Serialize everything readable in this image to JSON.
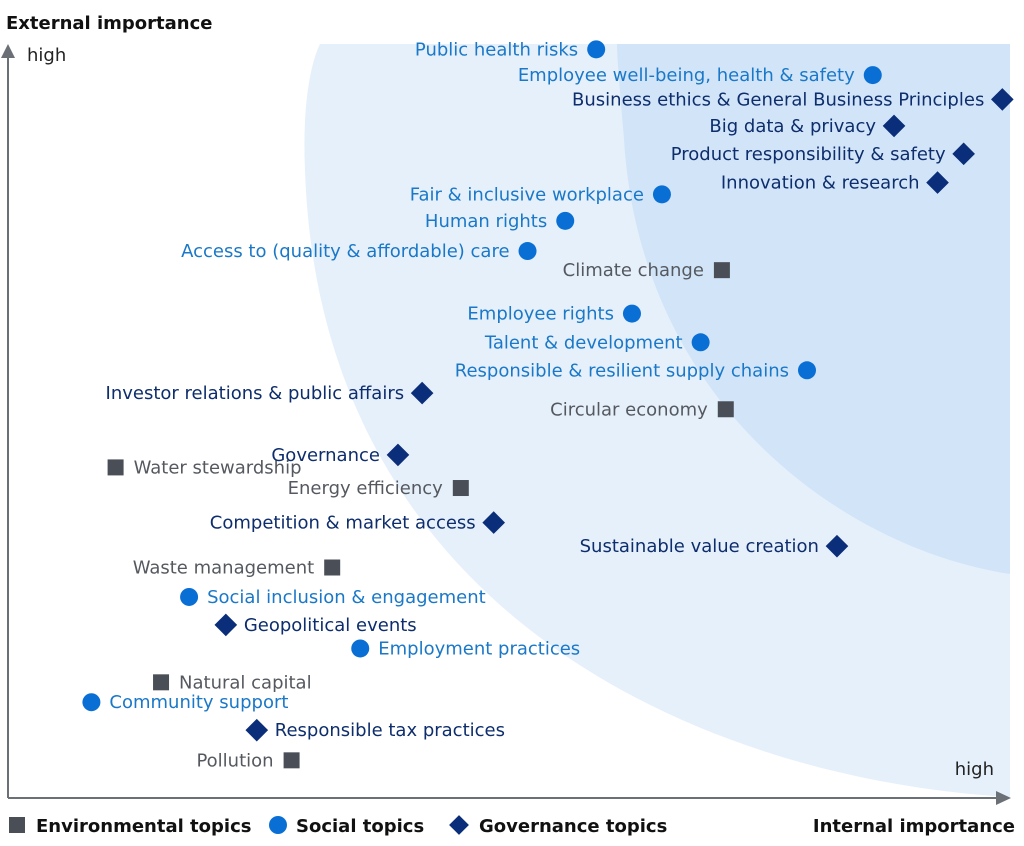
{
  "chart_data": {
    "type": "scatter",
    "title": "",
    "xlabel": "Internal importance",
    "ylabel": "External importance",
    "x_tick": "high",
    "y_tick": "high",
    "xlim": [
      0,
      100
    ],
    "ylim": [
      0,
      100
    ],
    "grid": false,
    "legend_placement": "bottom-left",
    "series": [
      {
        "name": "Environmental topics",
        "marker": "square",
        "color": "#4a4f57",
        "label_color": "#55595f",
        "points": [
          {
            "label": "Climate change",
            "x": 70.0,
            "y": 69.0,
            "side": "left"
          },
          {
            "label": "Circular economy",
            "x": 70.4,
            "y": 50.1,
            "side": "left"
          },
          {
            "label": "Water stewardship",
            "x": 7.3,
            "y": 42.2,
            "side": "right"
          },
          {
            "label": "Energy efficiency",
            "x": 43.0,
            "y": 39.4,
            "side": "left"
          },
          {
            "label": "Waste management",
            "x": 29.7,
            "y": 28.6,
            "side": "left"
          },
          {
            "label": "Natural capital",
            "x": 12.0,
            "y": 13.0,
            "side": "right"
          },
          {
            "label": "Pollution",
            "x": 25.5,
            "y": 2.4,
            "side": "left"
          }
        ]
      },
      {
        "name": "Social topics",
        "marker": "circle",
        "color": "#0a6fd4",
        "label_color": "#1a78c8",
        "points": [
          {
            "label": "Public health risks",
            "x": 57.0,
            "y": 99.0,
            "side": "left"
          },
          {
            "label": "Employee well-being, health & safety",
            "x": 85.6,
            "y": 95.5,
            "side": "left"
          },
          {
            "label": "Fair & inclusive workplace",
            "x": 63.8,
            "y": 79.3,
            "side": "left"
          },
          {
            "label": "Human rights",
            "x": 53.8,
            "y": 75.7,
            "side": "left"
          },
          {
            "label": "Access to (quality & affordable) care",
            "x": 49.9,
            "y": 71.6,
            "side": "left"
          },
          {
            "label": "Employee rights",
            "x": 60.7,
            "y": 63.1,
            "side": "left"
          },
          {
            "label": "Talent & development",
            "x": 67.8,
            "y": 59.2,
            "side": "left"
          },
          {
            "label": "Responsible & resilient supply chains",
            "x": 78.8,
            "y": 55.4,
            "side": "left"
          },
          {
            "label": "Social inclusion & engagement",
            "x": 14.9,
            "y": 24.6,
            "side": "right"
          },
          {
            "label": "Employment practices",
            "x": 32.6,
            "y": 17.6,
            "side": "right"
          },
          {
            "label": "Community support",
            "x": 4.8,
            "y": 10.3,
            "side": "right"
          }
        ]
      },
      {
        "name": "Governance topics",
        "marker": "diamond",
        "color": "#0b2e7a",
        "label_color": "#0d2d6c",
        "points": [
          {
            "label": "Business ethics & General Business Principles",
            "x": 99.0,
            "y": 92.2,
            "side": "left"
          },
          {
            "label": "Big data & privacy",
            "x": 87.8,
            "y": 88.6,
            "side": "left"
          },
          {
            "label": "Product responsibility & safety",
            "x": 95.0,
            "y": 84.8,
            "side": "left"
          },
          {
            "label": "Innovation & research",
            "x": 92.3,
            "y": 80.9,
            "side": "left"
          },
          {
            "label": "Investor relations & public affairs",
            "x": 39.0,
            "y": 52.3,
            "side": "left"
          },
          {
            "label": "Governance",
            "x": 36.5,
            "y": 43.9,
            "side": "left"
          },
          {
            "label": "Competition & market access",
            "x": 46.4,
            "y": 34.7,
            "side": "left"
          },
          {
            "label": "Sustainable value creation",
            "x": 81.9,
            "y": 31.5,
            "side": "left"
          },
          {
            "label": "Geopolitical events",
            "x": 18.7,
            "y": 20.8,
            "side": "right"
          },
          {
            "label": "Responsible tax practices",
            "x": 21.9,
            "y": 6.5,
            "side": "right"
          }
        ]
      }
    ]
  }
}
